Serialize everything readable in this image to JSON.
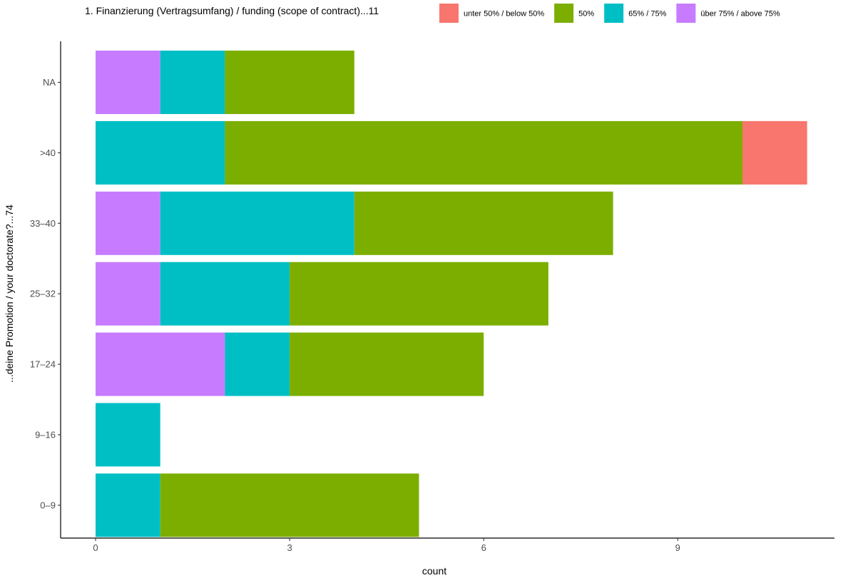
{
  "chart_data": {
    "type": "bar",
    "orientation": "horizontal",
    "stacked": true,
    "categories": [
      "NA",
      ">40",
      "33–40",
      "25–32",
      "17–24",
      "9–16",
      "0–9"
    ],
    "series": [
      {
        "name": "über 75% / above 75%",
        "color": "#C77CFF",
        "values": [
          1,
          0,
          1,
          1,
          2,
          0,
          0
        ]
      },
      {
        "name": "65% / 75%",
        "color": "#00BFC4",
        "values": [
          1,
          2,
          3,
          2,
          1,
          1,
          1
        ]
      },
      {
        "name": "50%",
        "color": "#7CAE00",
        "values": [
          2,
          8,
          4,
          4,
          3,
          0,
          4
        ]
      },
      {
        "name": "unter 50% / below 50%",
        "color": "#F8766D",
        "values": [
          0,
          1,
          0,
          0,
          0,
          0,
          0
        ]
      }
    ],
    "legend_order": [
      "unter 50% / below 50%",
      "50%",
      "65% / 75%",
      "über 75% / above 75%"
    ],
    "legend_title": "1. Finanzierung (Vertragsumfang) / funding (scope of contract)...11",
    "legend_position": "top",
    "xlabel": "count",
    "ylabel": "...deine Promotion / your doctorate?...74",
    "xlim": [
      0,
      11
    ],
    "xticks": [
      0,
      3,
      6,
      9
    ],
    "grid": false
  }
}
